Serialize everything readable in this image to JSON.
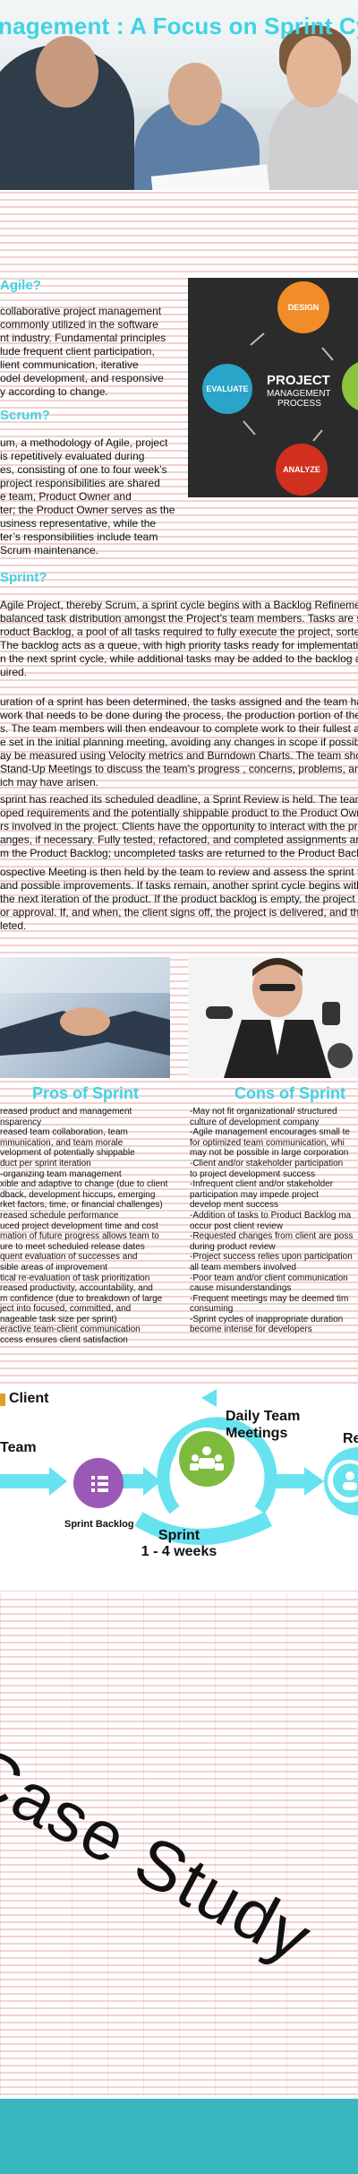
{
  "header": {
    "title": "nagement : A Focus on Sprint Cycle"
  },
  "section1": {
    "heading": "Agile?",
    "lines": [
      "collaborative project management",
      "commonly utilized in the software",
      "nt industry. Fundamental principles",
      "lude frequent client participation,",
      "lient communication, iterative",
      "odel development, and responsive",
      "y according to change."
    ]
  },
  "section2": {
    "heading": "Scrum?",
    "lines": [
      "um, a methodology of Agile, project",
      "is repetitively evaluated during",
      "es, consisting of one to four week’s",
      "project responsibilities are shared",
      "e team, Product Owner and",
      "ter; the Product Owner serves as the",
      "usiness representative, while the",
      "ter’s responsibilities include team",
      " Scrum maintenance."
    ]
  },
  "section3": {
    "heading": "Sprint?",
    "lines": [
      "Agile Project, thereby Scrum, a sprint cycle begins with a Backlog Refinement",
      " balanced task distribution amongst the Project’s team members. Tasks are se",
      "roduct Backlog, a pool of all tasks required to fully execute the project, sorted",
      " The backlog acts as a queue, with high priority tasks ready for implementation",
      "n the next sprint cycle, while additional tasks may be added to the backlog and",
      "uired."
    ]
  },
  "section4": {
    "lines": [
      "uration of a sprint has been determined, the tasks assigned and the team has a",
      " work that needs to be done during the process, the production portion of the",
      "s. The team members will then endeavour to complete work to their fullest ab",
      "e set in the initial planning meeting, avoiding any changes in scope if possible.",
      "ay be measured using Velocity metrics and Burndown Charts. The team should",
      " Stand-Up Meetings to discuss the team’s progress , concerns, problems, and a",
      "ich may have arisen."
    ]
  },
  "section5": {
    "lines": [
      "sprint has reached its scheduled deadline, a Sprint Review is held. The team pr",
      "oped requirements and the potentially shippable product to the Product Own",
      "rs involved in the project. Clients have the opportunity to interact with the pr",
      "anges, if necessary. Fully tested, refactored, and completed assignments are th",
      "m the Product Backlog; uncompleted tasks are returned to the Product Backlog"
    ]
  },
  "section6": {
    "lines": [
      "ospective Meeting is then held by the team to review and assess the sprint for",
      "and possible improvements. If tasks remain, another sprint cycle begins with a",
      " the next iteration of the product. If the product backlog is empty, the project g",
      "or approval. If, and when, the client signs off, the project is delivered, and the p",
      "leted."
    ]
  },
  "chalkboard": {
    "design": "DESIGN",
    "evaluate": "EVALUATE",
    "analyze": "ANALYZE",
    "project": "PROJECT",
    "management": "MANAGEMENT",
    "process": "PROCESS"
  },
  "pros": {
    "heading": "Pros of Sprint",
    "items": [
      "reased product and management",
      "nsparency",
      "reased team collaboration, team",
      "mmunication, and team morale",
      "velopment of potentially shippable",
      "duct per sprint iteration",
      "-organizing team management",
      "xible and adaptive to change (due to client",
      "dback, development hiccups, emerging",
      "rket factors, time, or financial challenges)",
      "reased schedule performance",
      "uced project development time and cost",
      "mation of future progress allows team to",
      "ure to meet scheduled release dates",
      "quent evaluation of successes and",
      "sible areas of improvement",
      "tical re-evaluation of task prioritization",
      "reased productivity, accountability, and",
      "m confidence (due to breakdown of large",
      "ject into focused, committed, and",
      "nageable task size per sprint)",
      "eractive team-client communication",
      "ccess ensures client satisfaction"
    ]
  },
  "cons": {
    "heading": "Cons of Sprint",
    "items": [
      "-May not fit organizational/ structured",
      " culture of development company",
      "-Agile management encourages small te",
      " for optimized team communication, whi",
      " may not be possible in large corporation",
      "-Client and/or stakeholder participation",
      " to project development success",
      "-Infrequent client and/or stakeholder",
      " participation may impede project",
      " develop ment success",
      "-Addition of tasks to Product Backlog ma",
      " occur post client review",
      "-Requested changes from client are poss",
      " during product review",
      "-Project success relies upon participation",
      " all team members involved",
      "-Poor team and/or client communication",
      " cause misunderstandings",
      "-Frequent meetings may be deemed tim",
      " consuming",
      "-Sprint cycles of inappropriate duration",
      " become intense for developers"
    ]
  },
  "diagram": {
    "client": "Client",
    "team": "Team",
    "daily_line1": "Daily Team",
    "daily_line2": "Meetings",
    "right_label": "Re",
    "sprint_backlog": "Sprint Backlog",
    "sprint_line1": "Sprint",
    "sprint_line2": "1 - 4 weeks"
  },
  "case": {
    "text": "Case Study"
  },
  "colors": {
    "accent": "#3fd4e4",
    "footer": "#3ab6bf",
    "lines": "#f5cfcf"
  }
}
